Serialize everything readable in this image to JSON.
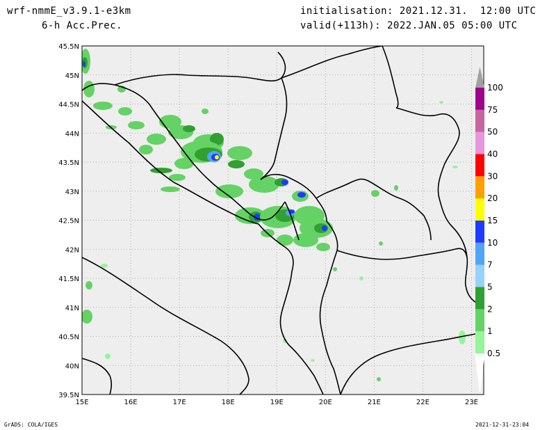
{
  "header": {
    "model": "wrf-nmmE_v3.9.1-e3km",
    "field": "6-h Acc.Prec.",
    "init_label": "initialisation: 2021.12.31.  12:00 UTC",
    "valid_label": "valid(+113h): 2022.JAN.05 05:00 UTC"
  },
  "footer": {
    "credit": "GrADS: COLA/IGES",
    "timestamp": "2021-12-31-23:04"
  },
  "map": {
    "lon_range": [
      15,
      23.25
    ],
    "lat_range": [
      39.5,
      45.5
    ],
    "lon_ticks": [
      "15E",
      "16E",
      "17E",
      "18E",
      "19E",
      "20E",
      "21E",
      "22E",
      "23E"
    ],
    "lat_ticks": [
      "39.5N",
      "40N",
      "40.5N",
      "41N",
      "41.5N",
      "42N",
      "42.5N",
      "43N",
      "43.5N",
      "44N",
      "44.5N",
      "45N",
      "45.5N"
    ],
    "background_color": "#eeeeee"
  },
  "legend": {
    "levels": [
      "0.5",
      "1",
      "2",
      "5",
      "7",
      "10",
      "15",
      "20",
      "30",
      "40",
      "50",
      "75",
      "100"
    ],
    "colors": [
      "#96f596",
      "#64d264",
      "#30a030",
      "#96d2fa",
      "#50a5f5",
      "#1e3cff",
      "#ffff00",
      "#ffa000",
      "#ff0000",
      "#e696dc",
      "#c864a0",
      "#a0008c"
    ]
  }
}
